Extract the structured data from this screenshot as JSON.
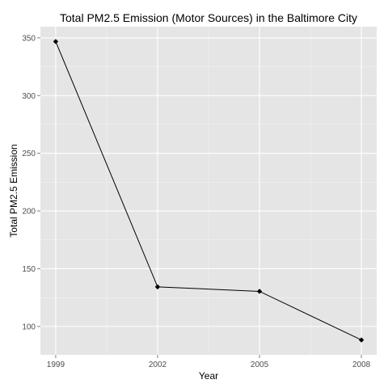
{
  "chart_data": {
    "type": "line",
    "title": "Total PM2.5 Emission (Motor Sources) in the Baltimore City",
    "xlabel": "Year",
    "ylabel": "Total PM2.5 Emission",
    "x": [
      1999,
      2002,
      2005,
      2008
    ],
    "y": [
      346.8,
      134.3,
      130.4,
      88.3
    ],
    "x_ticks": [
      "1999",
      "2002",
      "2005",
      "2008"
    ],
    "y_ticks": [
      "100",
      "150",
      "200",
      "250",
      "300",
      "350"
    ],
    "xlim": [
      1998.55,
      2008.45
    ],
    "ylim": [
      75.4,
      359.7
    ],
    "grid": true,
    "background": "#e5e5e5",
    "grid_color": "#ffffff",
    "line_color": "#000000",
    "marker_color": "#000000",
    "marker": "diamond"
  }
}
